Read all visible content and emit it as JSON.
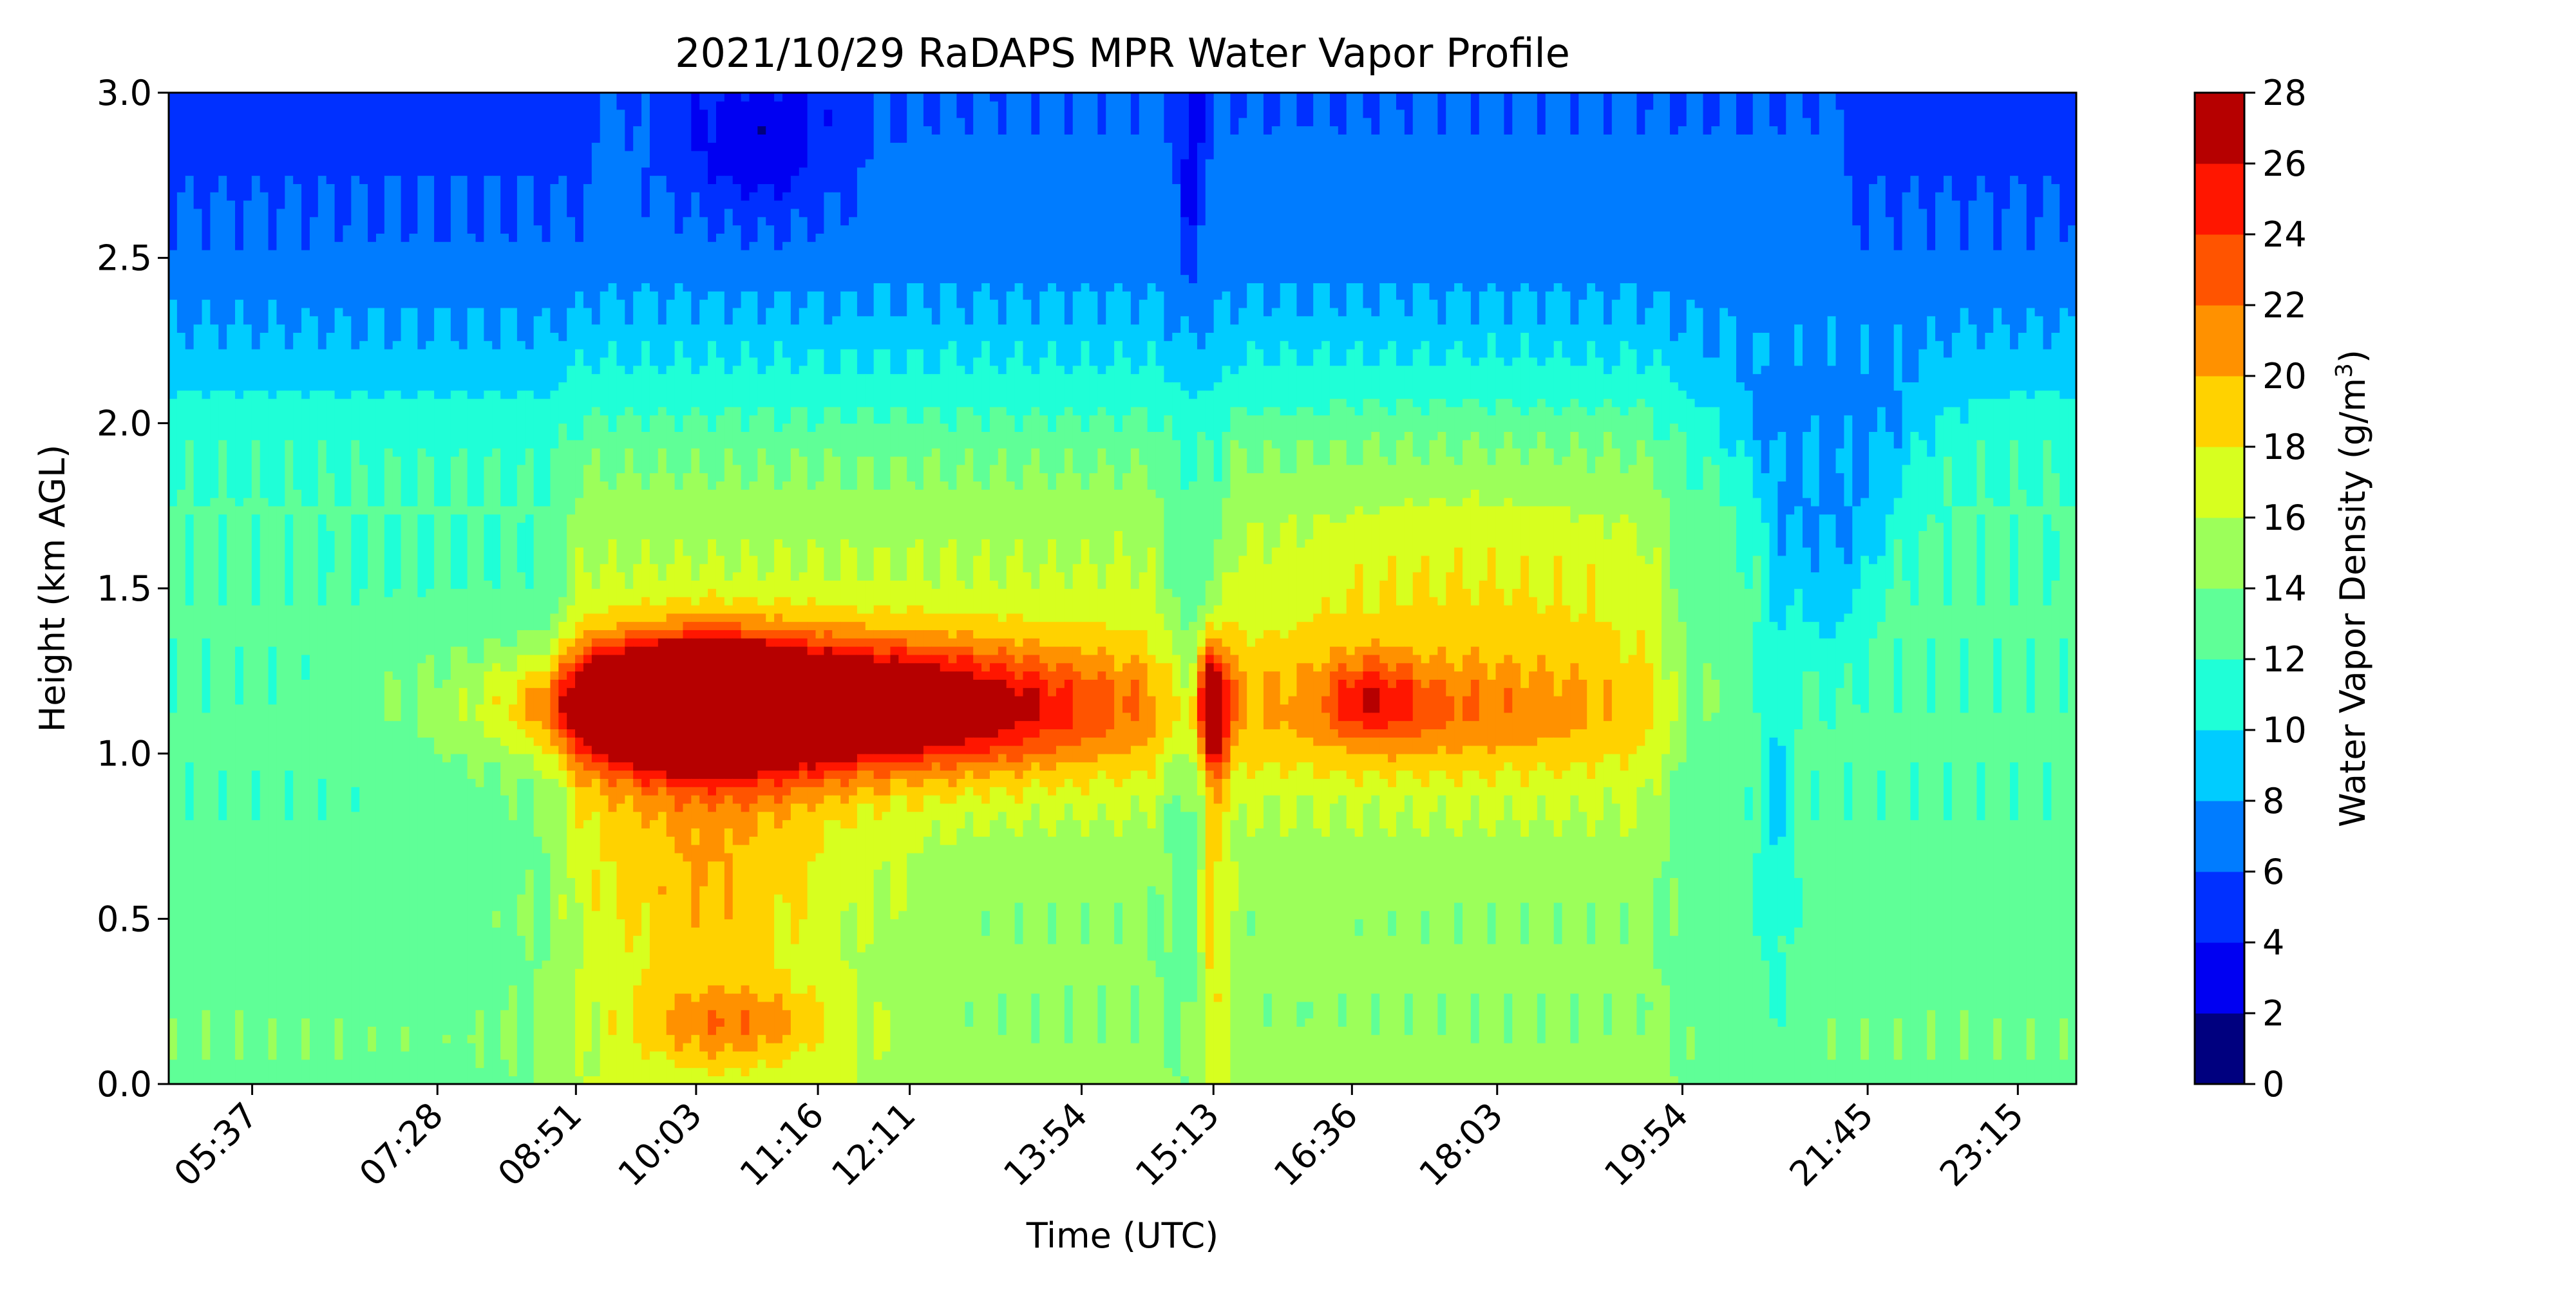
{
  "chart_data": {
    "type": "heatmap",
    "title": "2021/10/29 RaDAPS MPR Water Vapor Profile",
    "xlabel": "Time (UTC)",
    "ylabel": "Height (km AGL)",
    "colorbar_label": "Water Vapor Density (g/m",
    "colorbar_label_sup": "3",
    "colorbar_label_close": ")",
    "x_range": [
      "04:47",
      "23:50"
    ],
    "x_ticks": [
      "05:37",
      "07:28",
      "08:51",
      "10:03",
      "11:16",
      "12:11",
      "13:54",
      "15:13",
      "16:36",
      "18:03",
      "19:54",
      "21:45",
      "23:15"
    ],
    "y_range": [
      0.0,
      3.0
    ],
    "y_ticks": [
      "0.0",
      "0.5",
      "1.0",
      "1.5",
      "2.0",
      "2.5",
      "3.0"
    ],
    "levels": [
      0,
      2,
      4,
      6,
      8,
      10,
      12,
      14,
      16,
      18,
      20,
      22,
      24,
      26,
      28
    ],
    "level_labels": [
      "0",
      "2",
      "4",
      "6",
      "8",
      "10",
      "12",
      "14",
      "16",
      "18",
      "20",
      "22",
      "24",
      "26",
      "28"
    ],
    "colormap": [
      "#00007f",
      "#0000f2",
      "#0030ff",
      "#007cff",
      "#00ccff",
      "#1fffd7",
      "#5fff97",
      "#9cff5a",
      "#d7ff1f",
      "#ffd200",
      "#ff9100",
      "#ff5400",
      "#ff1600",
      "#b60000"
    ],
    "grid": false,
    "contour_lines": true
  }
}
